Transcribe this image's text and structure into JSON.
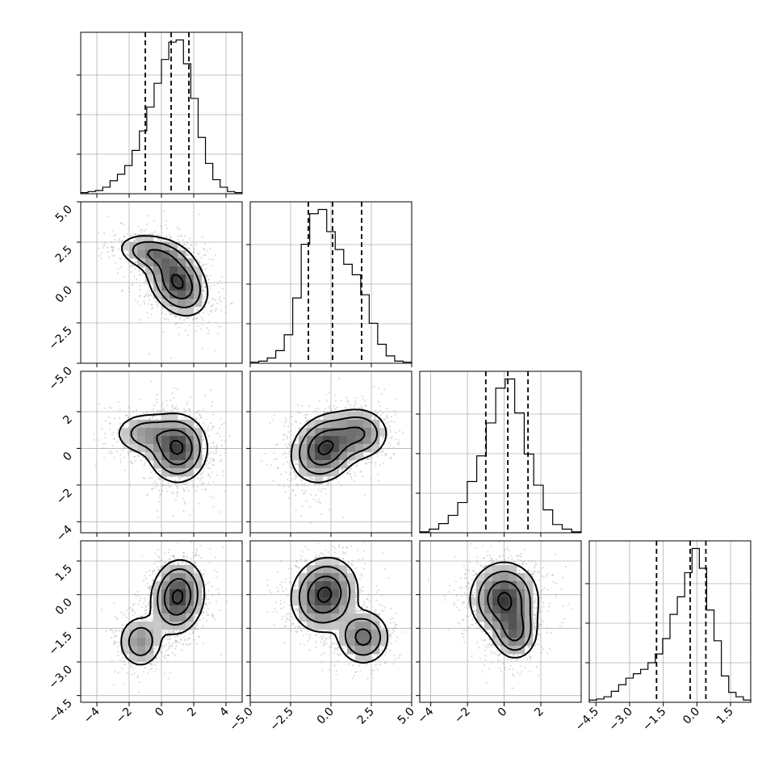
{
  "chart_data": {
    "type": "corner",
    "grid": true,
    "parameters": [
      {
        "range": [
          -5,
          5
        ],
        "ticks": [
          -4,
          -2,
          0,
          2,
          4
        ],
        "tick_labels": [
          "−4",
          "−2",
          "0",
          "2",
          "4"
        ]
      },
      {
        "range": [
          -5,
          5
        ],
        "ticks": [
          -5.0,
          -2.5,
          0.0,
          2.5,
          5.0
        ],
        "tick_labels": [
          "−5.0",
          "−2.5",
          "0.0",
          "2.5",
          "5.0"
        ]
      },
      {
        "range": [
          -4.6,
          4.2
        ],
        "ticks": [
          -4,
          -2,
          0,
          2
        ],
        "tick_labels": [
          "−4",
          "−2",
          "0",
          "2"
        ]
      },
      {
        "range": [
          -4.8,
          2.4
        ],
        "ticks": [
          -4.5,
          -3.0,
          -1.5,
          0.0,
          1.5
        ],
        "tick_labels": [
          "−4.5",
          "−3.0",
          "−1.5",
          "0.0",
          "1.5"
        ]
      }
    ],
    "histograms": [
      {
        "values": [
          1,
          2,
          3,
          6,
          12,
          18,
          26,
          40,
          58,
          80,
          102,
          124,
          140,
          142,
          120,
          88,
          52,
          28,
          13,
          6,
          2,
          1
        ],
        "quantiles": [
          -1.0,
          0.6,
          1.7
        ]
      },
      {
        "values": [
          1,
          2,
          5,
          12,
          27,
          62,
          113,
          142,
          146,
          125,
          108,
          94,
          84,
          65,
          38,
          18,
          7,
          2,
          1
        ],
        "quantiles": [
          -1.4,
          0.1,
          1.9
        ]
      },
      {
        "values": [
          1,
          4,
          10,
          19,
          33,
          56,
          84,
          120,
          158,
          168,
          131,
          86,
          52,
          25,
          9,
          4,
          1
        ],
        "quantiles": [
          -1.0,
          0.2,
          1.3
        ]
      },
      {
        "values": [
          2,
          3,
          5,
          10,
          16,
          22,
          26,
          30,
          36,
          44,
          58,
          80,
          96,
          118,
          140,
          122,
          84,
          56,
          24,
          9,
          5,
          2
        ],
        "quantiles": [
          -1.8,
          -0.3,
          0.4
        ]
      }
    ],
    "joint": [
      {
        "xi": 0,
        "yi": 1,
        "components": [
          {
            "mx": 1.0,
            "my": 0.0,
            "sx": 0.9,
            "sy": 1.0,
            "rho": -0.3,
            "w": 0.7
          },
          {
            "mx": -0.5,
            "my": 1.8,
            "sx": 1.1,
            "sy": 0.6,
            "rho": -0.3,
            "w": 0.3
          }
        ]
      },
      {
        "xi": 0,
        "yi": 2,
        "components": [
          {
            "mx": 1.0,
            "my": 0.0,
            "sx": 0.9,
            "sy": 0.9,
            "rho": 0.0,
            "w": 0.75
          },
          {
            "mx": -1.0,
            "my": 0.8,
            "sx": 1.0,
            "sy": 0.6,
            "rho": 0.0,
            "w": 0.25
          }
        ]
      },
      {
        "xi": 1,
        "yi": 2,
        "components": [
          {
            "mx": -0.4,
            "my": 0.0,
            "sx": 1.0,
            "sy": 0.9,
            "rho": 0.2,
            "w": 0.7
          },
          {
            "mx": 1.8,
            "my": 0.8,
            "sx": 0.9,
            "sy": 0.7,
            "rho": 0.0,
            "w": 0.3
          }
        ]
      },
      {
        "xi": 0,
        "yi": 3,
        "components": [
          {
            "mx": 1.0,
            "my": -0.1,
            "sx": 0.8,
            "sy": 0.8,
            "rho": 0.1,
            "w": 0.75
          },
          {
            "mx": -1.3,
            "my": -2.1,
            "sx": 0.7,
            "sy": 0.6,
            "rho": 0.0,
            "w": 0.25
          }
        ]
      },
      {
        "xi": 1,
        "yi": 3,
        "components": [
          {
            "mx": -0.4,
            "my": 0.0,
            "sx": 1.0,
            "sy": 0.8,
            "rho": 0.1,
            "w": 0.7
          },
          {
            "mx": 2.0,
            "my": -1.9,
            "sx": 0.8,
            "sy": 0.6,
            "rho": 0.0,
            "w": 0.3
          }
        ]
      },
      {
        "xi": 2,
        "yi": 3,
        "components": [
          {
            "mx": 0.0,
            "my": -0.2,
            "sx": 0.9,
            "sy": 0.8,
            "rho": 0.0,
            "w": 0.75
          },
          {
            "mx": 0.6,
            "my": -1.7,
            "sx": 0.6,
            "sy": 0.6,
            "rho": 0.0,
            "w": 0.25
          }
        ]
      }
    ]
  }
}
